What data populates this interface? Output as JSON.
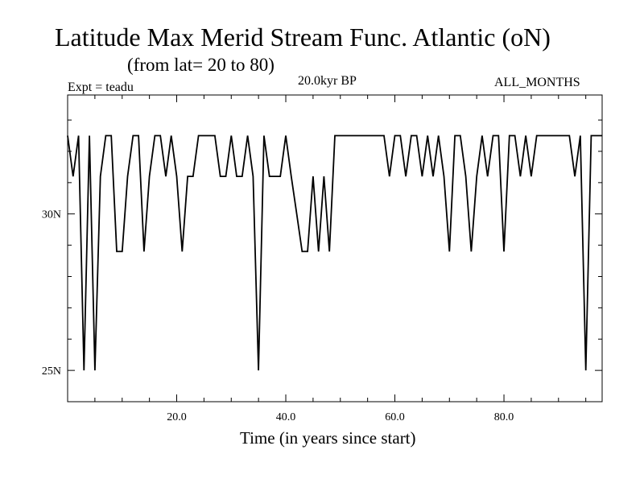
{
  "chart_data": {
    "type": "line",
    "title": "Latitude Max Merid Stream Func. Atlantic (oN)",
    "subtitle": "(from lat= 20 to 80)",
    "experiment_label": "Expt = teadu",
    "time_label": "20.0kyr BP",
    "months_label": "ALL_MONTHS",
    "xlabel": "Time (in years since start)",
    "ylabel": "",
    "xlim": [
      0,
      98
    ],
    "ylim": [
      24,
      33.8
    ],
    "x_ticks": [
      {
        "value": 20,
        "label": "20.0"
      },
      {
        "value": 40,
        "label": "40.0"
      },
      {
        "value": 60,
        "label": "60.0"
      },
      {
        "value": 80,
        "label": "80.0"
      }
    ],
    "y_ticks": [
      {
        "value": 25,
        "label": "25N"
      },
      {
        "value": 30,
        "label": "30N"
      }
    ],
    "series": [
      {
        "name": "Latitude Max Merid Stream Func",
        "x": [
          0,
          1,
          2,
          3,
          4,
          5,
          6,
          7,
          8,
          9,
          10,
          11,
          12,
          13,
          14,
          15,
          16,
          17,
          18,
          19,
          20,
          21,
          22,
          23,
          24,
          25,
          26,
          27,
          28,
          29,
          30,
          31,
          32,
          33,
          34,
          35,
          36,
          37,
          38,
          39,
          40,
          41,
          42,
          43,
          44,
          45,
          46,
          47,
          48,
          49,
          50,
          51,
          52,
          53,
          54,
          55,
          56,
          57,
          58,
          59,
          60,
          61,
          62,
          63,
          64,
          65,
          66,
          67,
          68,
          69,
          70,
          71,
          72,
          73,
          74,
          75,
          76,
          77,
          78,
          79,
          80,
          81,
          82,
          83,
          84,
          85,
          86,
          87,
          88,
          89,
          90,
          91,
          92,
          93,
          94,
          95,
          96,
          97,
          98
        ],
        "values": [
          32.5,
          31.2,
          32.5,
          25.0,
          32.5,
          25.0,
          31.2,
          32.5,
          32.5,
          28.8,
          28.8,
          31.2,
          32.5,
          32.5,
          28.8,
          31.2,
          32.5,
          32.5,
          31.2,
          32.5,
          31.2,
          28.8,
          31.2,
          31.2,
          32.5,
          32.5,
          32.5,
          32.5,
          31.2,
          31.2,
          32.5,
          31.2,
          31.2,
          32.5,
          31.2,
          25.0,
          32.5,
          31.2,
          31.2,
          31.2,
          32.5,
          31.2,
          30.0,
          28.8,
          28.8,
          31.2,
          28.8,
          31.2,
          28.8,
          32.5,
          32.5,
          32.5,
          32.5,
          32.5,
          32.5,
          32.5,
          32.5,
          32.5,
          32.5,
          31.2,
          32.5,
          32.5,
          31.2,
          32.5,
          32.5,
          31.2,
          32.5,
          31.2,
          32.5,
          31.2,
          28.8,
          32.5,
          32.5,
          31.2,
          28.8,
          31.2,
          32.5,
          31.2,
          32.5,
          32.5,
          28.8,
          32.5,
          32.5,
          31.2,
          32.5,
          31.2,
          32.5,
          32.5,
          32.5,
          32.5,
          32.5,
          32.5,
          32.5,
          31.2,
          32.5,
          25.0,
          32.5,
          32.5,
          32.5
        ]
      }
    ]
  }
}
